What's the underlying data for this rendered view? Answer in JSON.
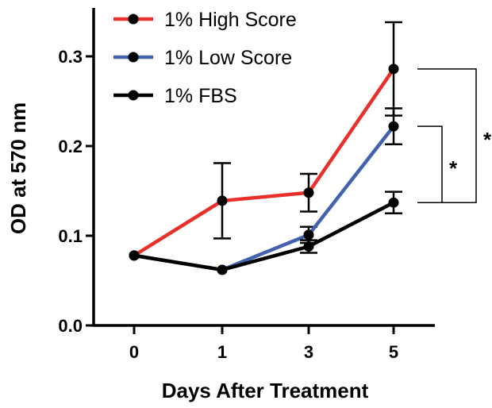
{
  "chart_data": {
    "type": "line",
    "x": [
      "0",
      "1",
      "3",
      "5"
    ],
    "xlabel": "Days After Treatment",
    "ylabel": "OD at 570 nm",
    "ylim": [
      0,
      0.34
    ],
    "yticks": [
      "0.0",
      "0.1",
      "0.2",
      "0.3"
    ],
    "ytick_values": [
      0,
      0.1,
      0.2,
      0.3
    ],
    "legend_position": "top-left",
    "grid": false,
    "series": [
      {
        "name": "1% High Score",
        "color": "#e8302a",
        "values": [
          0.078,
          0.139,
          0.148,
          0.286
        ],
        "errors": [
          0.003,
          0.042,
          0.021,
          0.052
        ]
      },
      {
        "name": "1% Low Score",
        "color": "#4262ad",
        "values": [
          0.078,
          0.062,
          0.101,
          0.222
        ],
        "errors": [
          0.003,
          0.003,
          0.009,
          0.02
        ]
      },
      {
        "name": "1% FBS",
        "color": "#000000",
        "values": [
          0.078,
          0.062,
          0.088,
          0.137
        ],
        "errors": [
          0.003,
          0.003,
          0.007,
          0.012
        ]
      }
    ],
    "annotations": [
      {
        "text": "*",
        "compares": [
          "1% High Score",
          "1% FBS"
        ],
        "x": "5"
      },
      {
        "text": "*",
        "compares": [
          "1% Low Score",
          "1% FBS"
        ],
        "x": "5"
      }
    ]
  }
}
